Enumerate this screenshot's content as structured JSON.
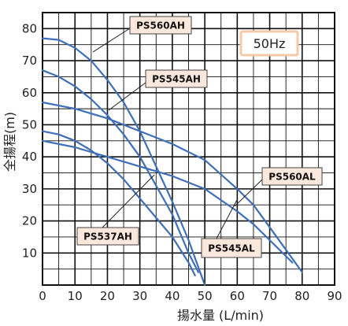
{
  "chart_data": {
    "type": "line",
    "xlabel": "揚水量 (L/min)",
    "ylabel": "全揚程(m)",
    "xlim": [
      0,
      90
    ],
    "ylim": [
      0,
      85
    ],
    "x_ticks": [
      0,
      10,
      20,
      30,
      40,
      50,
      60,
      70,
      80,
      90
    ],
    "y_ticks": [
      10,
      20,
      30,
      40,
      50,
      60,
      70,
      80
    ],
    "grid": true,
    "badge": "50Hz",
    "series": [
      {
        "name": "PS560AH",
        "x": [
          0,
          5,
          10,
          15,
          20,
          25,
          30,
          35,
          40,
          45,
          50
        ],
        "y": [
          77,
          76.5,
          74,
          70,
          64,
          57,
          48,
          37,
          26,
          14,
          0
        ]
      },
      {
        "name": "PS545AH",
        "x": [
          0,
          5,
          10,
          15,
          20,
          25,
          30,
          35,
          40,
          45,
          48
        ],
        "y": [
          67,
          65,
          62,
          58,
          53,
          47,
          40,
          31,
          22,
          10,
          4
        ]
      },
      {
        "name": "PS537AH",
        "x": [
          0,
          5,
          10,
          15,
          20,
          25,
          30,
          35,
          40,
          45,
          47
        ],
        "y": [
          48,
          47,
          45,
          42,
          38,
          33,
          27,
          21,
          15,
          7,
          3
        ]
      },
      {
        "name": "PS560AL",
        "x": [
          0,
          10,
          20,
          30,
          40,
          50,
          60,
          65,
          70,
          75,
          80
        ],
        "y": [
          57,
          55,
          52,
          48,
          44,
          39,
          30,
          25,
          18,
          11,
          4
        ]
      },
      {
        "name": "PS545AL",
        "x": [
          0,
          10,
          20,
          30,
          40,
          50,
          60,
          65,
          70,
          75,
          77
        ],
        "y": [
          45,
          43,
          40,
          37,
          34,
          30,
          23,
          19,
          14,
          9,
          7
        ]
      }
    ],
    "labels": [
      {
        "text": "PS560AH"
      },
      {
        "text": "PS545AH"
      },
      {
        "text": "PS537AH"
      },
      {
        "text": "PS560AL"
      },
      {
        "text": "PS545AL"
      }
    ],
    "colors": {
      "line": "#3f6fb8",
      "grid": "#111111",
      "label_bg": "#fbe8dc",
      "label_border": "#444444",
      "badge_bg": "#ffffff",
      "badge_border": "#f4c9a8"
    }
  }
}
